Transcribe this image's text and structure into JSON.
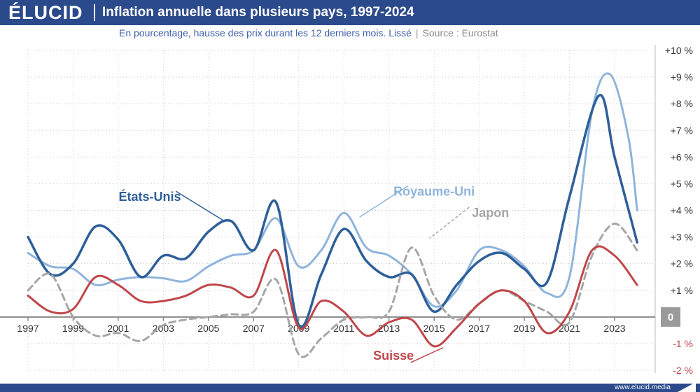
{
  "header": {
    "logo": "ÉLUCID",
    "title": "Inflation annuelle dans plusieurs pays, 1997-2024",
    "subtitle": "En pourcentage, hausse des prix durant les 12 derniers mois. Lissé",
    "separator": "|",
    "source": "Source : Eurostat"
  },
  "footer": {
    "url": "www.elucid.media"
  },
  "chart_data": {
    "type": "line",
    "title": "Inflation annuelle dans plusieurs pays, 1997-2024",
    "xlim": [
      1997,
      2024.8
    ],
    "ylim": [
      -2,
      10
    ],
    "x_ticks": [
      1997,
      1999,
      2001,
      2003,
      2005,
      2007,
      2009,
      2011,
      2013,
      2015,
      2017,
      2019,
      2021,
      2023
    ],
    "y_ticks": [
      {
        "value": 10,
        "label": "+10 %"
      },
      {
        "value": 9,
        "label": "+9 %"
      },
      {
        "value": 8,
        "label": "+8 %"
      },
      {
        "value": 7,
        "label": "+7 %"
      },
      {
        "value": 6,
        "label": "+6 %"
      },
      {
        "value": 5,
        "label": "+5 %"
      },
      {
        "value": 4,
        "label": "+4 %"
      },
      {
        "value": 3,
        "label": "+3 %"
      },
      {
        "value": 2,
        "label": "+2 %"
      },
      {
        "value": 1,
        "label": "+1 %"
      },
      {
        "value": 0,
        "label": "0"
      },
      {
        "value": -1,
        "label": "-1 %"
      },
      {
        "value": -2,
        "label": "-2 %"
      }
    ],
    "grid": true,
    "series": [
      {
        "name": "Royaume-Uni",
        "color": "#8fb4dc",
        "dash": false,
        "width": 3,
        "points": [
          [
            1997,
            2.4
          ],
          [
            1998,
            1.9
          ],
          [
            1999,
            1.8
          ],
          [
            2000,
            1.2
          ],
          [
            2001,
            1.4
          ],
          [
            2002,
            1.5
          ],
          [
            2003,
            1.45
          ],
          [
            2004,
            1.35
          ],
          [
            2005,
            1.9
          ],
          [
            2006,
            2.3
          ],
          [
            2007,
            2.5
          ],
          [
            2008,
            3.7
          ],
          [
            2009,
            1.9
          ],
          [
            2010,
            2.5
          ],
          [
            2011,
            3.9
          ],
          [
            2012,
            2.6
          ],
          [
            2013,
            2.3
          ],
          [
            2014,
            1.6
          ],
          [
            2015,
            0.4
          ],
          [
            2016,
            1.0
          ],
          [
            2017,
            2.5
          ],
          [
            2018,
            2.5
          ],
          [
            2019,
            1.9
          ],
          [
            2020,
            0.9
          ],
          [
            2021,
            1.5
          ],
          [
            2022,
            7.7
          ],
          [
            2022.8,
            9.1
          ],
          [
            2023.6,
            6.8
          ],
          [
            2024,
            4.0
          ]
        ]
      },
      {
        "name": "États-Unis",
        "color": "#2e5f99",
        "dash": false,
        "width": 3.5,
        "points": [
          [
            1997,
            3.0
          ],
          [
            1998,
            1.6
          ],
          [
            1999,
            2.0
          ],
          [
            2000,
            3.4
          ],
          [
            2001,
            2.9
          ],
          [
            2002,
            1.5
          ],
          [
            2003,
            2.3
          ],
          [
            2004,
            2.2
          ],
          [
            2005,
            3.2
          ],
          [
            2006,
            3.6
          ],
          [
            2007,
            2.5
          ],
          [
            2008,
            4.3
          ],
          [
            2009,
            -0.3
          ],
          [
            2010,
            1.6
          ],
          [
            2011,
            3.3
          ],
          [
            2012,
            2.1
          ],
          [
            2013,
            1.5
          ],
          [
            2014,
            1.6
          ],
          [
            2015,
            0.2
          ],
          [
            2016,
            1.2
          ],
          [
            2017,
            2.1
          ],
          [
            2018,
            2.4
          ],
          [
            2019,
            1.8
          ],
          [
            2020,
            1.3
          ],
          [
            2021,
            4.5
          ],
          [
            2022.3,
            8.3
          ],
          [
            2023,
            6.0
          ],
          [
            2024,
            2.8
          ]
        ]
      },
      {
        "name": "Japon",
        "color": "#a6a6a6",
        "dash": true,
        "width": 3,
        "points": [
          [
            1997,
            1.0
          ],
          [
            1998,
            1.6
          ],
          [
            1999,
            0.0
          ],
          [
            2000,
            -0.7
          ],
          [
            2001,
            -0.6
          ],
          [
            2002,
            -0.9
          ],
          [
            2003,
            -0.3
          ],
          [
            2004,
            -0.1
          ],
          [
            2005,
            0.0
          ],
          [
            2006,
            0.1
          ],
          [
            2007,
            0.2
          ],
          [
            2008,
            1.4
          ],
          [
            2009,
            -1.4
          ],
          [
            2010,
            -0.8
          ],
          [
            2011,
            -0.1
          ],
          [
            2012,
            0.0
          ],
          [
            2013,
            0.2
          ],
          [
            2014,
            2.6
          ],
          [
            2015,
            0.8
          ],
          [
            2016,
            -0.1
          ],
          [
            2017,
            0.5
          ],
          [
            2018,
            1.0
          ],
          [
            2019,
            0.6
          ],
          [
            2020,
            0.2
          ],
          [
            2021,
            -0.2
          ],
          [
            2022,
            2.3
          ],
          [
            2023,
            3.5
          ],
          [
            2024,
            2.5
          ]
        ]
      },
      {
        "name": "Suisse",
        "color": "#c0464a",
        "dash": false,
        "width": 3,
        "points": [
          [
            1997,
            0.8
          ],
          [
            1998,
            0.2
          ],
          [
            1999,
            0.3
          ],
          [
            2000,
            1.5
          ],
          [
            2001,
            1.2
          ],
          [
            2002,
            0.6
          ],
          [
            2003,
            0.6
          ],
          [
            2004,
            0.8
          ],
          [
            2005,
            1.2
          ],
          [
            2006,
            1.1
          ],
          [
            2007,
            0.8
          ],
          [
            2008,
            2.5
          ],
          [
            2009,
            -0.4
          ],
          [
            2010,
            0.6
          ],
          [
            2011,
            0.2
          ],
          [
            2012,
            -0.7
          ],
          [
            2013,
            -0.2
          ],
          [
            2014,
            -0.1
          ],
          [
            2015,
            -1.1
          ],
          [
            2016,
            -0.4
          ],
          [
            2017,
            0.5
          ],
          [
            2018,
            1.0
          ],
          [
            2019,
            0.6
          ],
          [
            2020,
            -0.6
          ],
          [
            2021,
            0.2
          ],
          [
            2022,
            2.5
          ],
          [
            2023,
            2.3
          ],
          [
            2024,
            1.2
          ]
        ]
      }
    ],
    "labels": [
      {
        "text": "Royaume-Uni",
        "series": "Royaume-Uni",
        "x": 2015.0,
        "y": 4.55,
        "leader_to": [
          2011.7,
          3.75
        ]
      },
      {
        "text": "États-Unis",
        "series": "États-Unis",
        "x": 2002.4,
        "y": 4.35,
        "leader_to": [
          2005.7,
          3.6
        ]
      },
      {
        "text": "Japon",
        "series": "Japon",
        "x": 2017.5,
        "y": 3.75,
        "leader_to": [
          2014.8,
          2.95
        ]
      },
      {
        "text": "Suisse",
        "series": "Suisse",
        "x": 2013.2,
        "y": -1.6,
        "leader_to": [
          2015.4,
          -1.15
        ]
      }
    ]
  }
}
